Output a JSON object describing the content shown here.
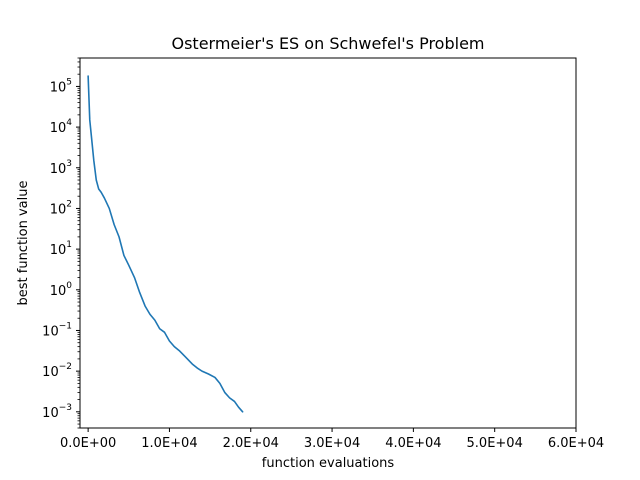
{
  "chart_data": {
    "type": "line",
    "title": "Ostermeier's ES on Schwefel's Problem",
    "xlabel": "function evaluations",
    "ylabel": "best function value",
    "xlim": [
      -1000,
      60000
    ],
    "ylim": [
      0.0004,
      500000
    ],
    "yscale": "log",
    "grid": false,
    "x_ticks": [
      {
        "value": 0,
        "label": "0.0E+00"
      },
      {
        "value": 10000,
        "label": "1.0E+04"
      },
      {
        "value": 20000,
        "label": "2.0E+04"
      },
      {
        "value": 30000,
        "label": "3.0E+04"
      },
      {
        "value": 40000,
        "label": "4.0E+04"
      },
      {
        "value": 50000,
        "label": "5.0E+04"
      },
      {
        "value": 60000,
        "label": "6.0E+04"
      }
    ],
    "y_ticks": [
      {
        "value": 100000,
        "base": "10",
        "exp": "5"
      },
      {
        "value": 10000,
        "base": "10",
        "exp": "4"
      },
      {
        "value": 1000,
        "base": "10",
        "exp": "3"
      },
      {
        "value": 100,
        "base": "10",
        "exp": "2"
      },
      {
        "value": 10,
        "base": "10",
        "exp": "1"
      },
      {
        "value": 1,
        "base": "10",
        "exp": "0"
      },
      {
        "value": 0.1,
        "base": "10",
        "exp": "−1"
      },
      {
        "value": 0.01,
        "base": "10",
        "exp": "−2"
      },
      {
        "value": 0.001,
        "base": "10",
        "exp": "−3"
      }
    ],
    "series": [
      {
        "color": "#1f77b4",
        "x": [
          0,
          200,
          400,
          700,
          1000,
          1300,
          1600,
          2000,
          2600,
          3200,
          3800,
          4400,
          5000,
          5700,
          6300,
          7000,
          7600,
          8200,
          8800,
          9400,
          10000,
          10600,
          11200,
          12000,
          12800,
          13400,
          14000,
          14800,
          15600,
          16200,
          16800,
          17400,
          18000,
          18500,
          19000
        ],
        "y": [
          180000,
          15000,
          6000,
          1500,
          500,
          300,
          250,
          180,
          100,
          40,
          20,
          7,
          4,
          2,
          0.9,
          0.4,
          0.25,
          0.18,
          0.11,
          0.09,
          0.055,
          0.04,
          0.032,
          0.022,
          0.015,
          0.012,
          0.01,
          0.0085,
          0.007,
          0.005,
          0.003,
          0.0022,
          0.0018,
          0.0013,
          0.001
        ]
      }
    ]
  }
}
